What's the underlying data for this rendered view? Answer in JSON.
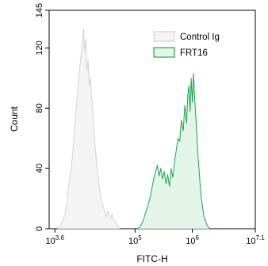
{
  "chart_data": {
    "type": "area",
    "title": "",
    "xlabel": "FITC-H",
    "ylabel": "Count",
    "x_scale": "log10",
    "xlim_log10": [
      3.5,
      7.1
    ],
    "ylim": [
      0,
      145
    ],
    "grid": false,
    "legend_position": "top-right",
    "x_ticks": [
      {
        "base": "10",
        "exp": "3.6",
        "log10": 3.6
      },
      {
        "base": "10",
        "exp": "5",
        "log10": 5
      },
      {
        "base": "10",
        "exp": "6",
        "log10": 6
      },
      {
        "base": "10",
        "exp": "7.1",
        "log10": 7.1
      }
    ],
    "y_ticks": [
      {
        "label": "0",
        "value": 0
      },
      {
        "label": "40",
        "value": 40
      },
      {
        "label": "80",
        "value": 80
      },
      {
        "label": "120",
        "value": 120
      },
      {
        "label": "145",
        "value": 145
      }
    ],
    "series": [
      {
        "name": "Control Ig",
        "stroke": "#d3d3d3",
        "fill": "#f4f4f4",
        "x_log10": [
          3.65,
          3.7,
          3.74,
          3.78,
          3.82,
          3.86,
          3.9,
          3.93,
          3.96,
          3.99,
          4.02,
          4.05,
          4.08,
          4.1,
          4.12,
          4.14,
          4.16,
          4.18,
          4.2,
          4.22,
          4.24,
          4.26,
          4.28,
          4.3,
          4.33,
          4.36,
          4.39,
          4.42,
          4.45,
          4.48,
          4.5,
          4.52,
          4.55,
          4.58,
          4.6,
          4.62,
          4.65,
          4.68,
          4.7,
          4.73
        ],
        "counts": [
          0,
          2,
          6,
          10,
          22,
          34,
          46,
          60,
          74,
          88,
          102,
          112,
          124,
          133,
          118,
          126,
          105,
          112,
          95,
          100,
          88,
          80,
          68,
          55,
          44,
          33,
          24,
          18,
          14,
          10,
          8,
          12,
          9,
          7,
          10,
          6,
          5,
          3,
          1,
          0
        ]
      },
      {
        "name": "FRT16",
        "stroke": "#1aa64a",
        "fill": "#e3f5e9",
        "x_log10": [
          5.05,
          5.1,
          5.14,
          5.18,
          5.22,
          5.26,
          5.3,
          5.33,
          5.36,
          5.39,
          5.42,
          5.45,
          5.48,
          5.51,
          5.54,
          5.57,
          5.6,
          5.63,
          5.66,
          5.69,
          5.72,
          5.75,
          5.78,
          5.81,
          5.84,
          5.87,
          5.9,
          5.92,
          5.94,
          5.96,
          5.98,
          6.0,
          6.02,
          6.04,
          6.06,
          6.08,
          6.1,
          6.12,
          6.14,
          6.16,
          6.18,
          6.2,
          6.22,
          6.25,
          6.28,
          6.3
        ],
        "counts": [
          0,
          2,
          5,
          10,
          15,
          20,
          28,
          34,
          38,
          42,
          35,
          40,
          33,
          38,
          30,
          36,
          28,
          40,
          34,
          45,
          52,
          60,
          58,
          72,
          65,
          82,
          70,
          88,
          95,
          78,
          100,
          84,
          103,
          88,
          75,
          62,
          48,
          38,
          27,
          20,
          14,
          9,
          6,
          3,
          1,
          0
        ]
      }
    ]
  }
}
